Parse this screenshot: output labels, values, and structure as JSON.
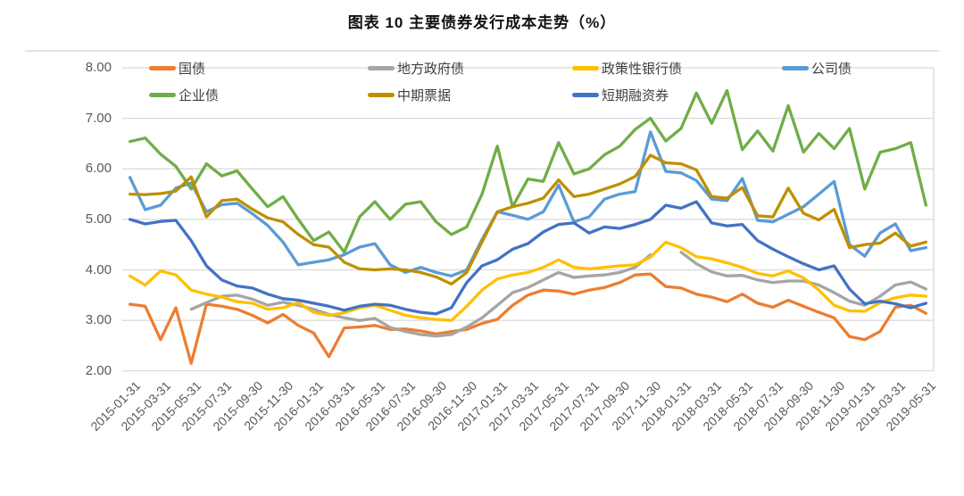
{
  "title": "图表 10 主要债券发行成本走势（%）",
  "chart_data": {
    "type": "line",
    "title": "图表 10 主要债券发行成本走势（%）",
    "x_start": "2015-01",
    "x_end": "2019-05",
    "x_frequency": "monthly",
    "n_points": 53,
    "x_tick_labels": [
      "2015-01-31",
      "2015-03-31",
      "2015-05-31",
      "2015-07-31",
      "2015-09-30",
      "2015-11-30",
      "2016-01-31",
      "2016-03-31",
      "2016-05-31",
      "2016-07-31",
      "2016-09-30",
      "2016-11-30",
      "2017-01-31",
      "2017-03-31",
      "2017-05-31",
      "2017-07-31",
      "2017-09-30",
      "2017-11-30",
      "2018-01-31",
      "2018-03-31",
      "2018-05-31",
      "2018-07-31",
      "2018-09-30",
      "2018-11-30",
      "2019-01-31",
      "2019-03-31",
      "2019-05-31"
    ],
    "y_tick_labels": [
      "8.00",
      "7.00",
      "6.00",
      "5.00",
      "4.00",
      "3.00",
      "2.00"
    ],
    "ylim": [
      2.0,
      8.0
    ],
    "ylabel": "",
    "xlabel": "",
    "grid": true,
    "legend_position": "top",
    "gridline_color": "#d9d9d9",
    "axis_label_color": "#595959",
    "series": [
      {
        "name": "国债",
        "color": "#ED7D31",
        "values": [
          3.32,
          3.28,
          2.62,
          3.25,
          2.15,
          3.32,
          3.28,
          3.22,
          3.1,
          2.95,
          3.12,
          2.9,
          2.75,
          2.28,
          2.85,
          2.87,
          2.9,
          2.82,
          2.83,
          2.79,
          2.73,
          2.78,
          2.82,
          2.94,
          3.02,
          3.3,
          3.5,
          3.6,
          3.58,
          3.52,
          3.6,
          3.65,
          3.75,
          3.9,
          3.92,
          3.67,
          3.64,
          3.52,
          3.46,
          3.37,
          3.52,
          3.34,
          3.26,
          3.4,
          3.28,
          3.16,
          3.05,
          2.68,
          2.62,
          2.78,
          3.26,
          3.3,
          3.14
        ]
      },
      {
        "name": "地方政府债",
        "color": "#A5A5A5",
        "values": [
          null,
          null,
          null,
          null,
          3.22,
          3.35,
          3.48,
          3.5,
          3.42,
          3.3,
          3.36,
          3.3,
          3.22,
          3.12,
          3.05,
          3.0,
          3.04,
          2.86,
          2.78,
          2.72,
          2.69,
          2.72,
          2.87,
          3.05,
          3.3,
          3.55,
          3.65,
          3.8,
          3.95,
          3.85,
          3.88,
          3.9,
          3.95,
          4.05,
          4.3,
          null,
          4.35,
          4.12,
          3.96,
          3.88,
          3.89,
          3.8,
          3.75,
          3.78,
          3.78,
          3.7,
          3.55,
          3.38,
          3.3,
          3.48,
          3.7,
          3.76,
          3.62
        ]
      },
      {
        "name": "政策性银行债",
        "color": "#FFC000",
        "values": [
          3.88,
          3.7,
          3.98,
          3.9,
          3.6,
          3.52,
          3.46,
          3.37,
          3.34,
          3.22,
          3.25,
          3.35,
          3.16,
          3.1,
          3.15,
          3.25,
          3.3,
          3.2,
          3.1,
          3.05,
          3.02,
          3.0,
          3.28,
          3.6,
          3.82,
          3.9,
          3.95,
          4.05,
          4.2,
          4.05,
          4.02,
          4.05,
          4.08,
          4.1,
          4.25,
          4.55,
          4.44,
          4.26,
          4.22,
          4.14,
          4.05,
          3.93,
          3.88,
          3.98,
          3.84,
          3.6,
          3.3,
          3.19,
          3.18,
          3.35,
          3.45,
          3.5,
          3.48
        ]
      },
      {
        "name": "公司债",
        "color": "#5B9BD5",
        "values": [
          5.83,
          5.19,
          5.28,
          5.62,
          5.72,
          5.15,
          5.29,
          5.32,
          5.11,
          4.88,
          4.55,
          4.1,
          4.15,
          4.2,
          4.3,
          4.45,
          4.52,
          4.1,
          3.95,
          4.05,
          3.95,
          3.88,
          4.0,
          4.6,
          5.15,
          5.08,
          5.0,
          5.15,
          5.68,
          4.95,
          5.05,
          5.4,
          5.5,
          5.55,
          6.73,
          5.95,
          5.92,
          5.77,
          5.4,
          5.37,
          5.81,
          4.98,
          4.95,
          5.1,
          5.25,
          5.5,
          5.75,
          4.5,
          4.27,
          4.73,
          4.91,
          4.38,
          4.44
        ]
      },
      {
        "name": "企业债",
        "color": "#70AD47",
        "values": [
          6.54,
          6.61,
          6.29,
          6.05,
          5.6,
          6.1,
          5.86,
          5.96,
          5.6,
          5.25,
          5.45,
          5.0,
          4.58,
          4.75,
          4.35,
          5.05,
          5.35,
          5.0,
          5.3,
          5.35,
          4.95,
          4.7,
          4.85,
          5.5,
          6.45,
          5.25,
          5.8,
          5.75,
          6.52,
          5.9,
          6.0,
          6.28,
          6.45,
          6.78,
          7.0,
          6.55,
          6.8,
          7.5,
          6.9,
          7.55,
          6.38,
          6.75,
          6.35,
          7.25,
          6.33,
          6.7,
          6.4,
          6.8,
          5.6,
          6.33,
          6.4,
          6.52,
          5.28
        ]
      },
      {
        "name": "中期票据",
        "color": "#BF8F00",
        "values": [
          5.5,
          5.49,
          5.51,
          5.56,
          5.84,
          5.05,
          5.37,
          5.4,
          5.2,
          5.03,
          4.95,
          4.7,
          4.5,
          4.45,
          4.15,
          4.02,
          4.0,
          4.02,
          4.0,
          3.95,
          3.86,
          3.72,
          3.95,
          4.55,
          5.15,
          5.25,
          5.32,
          5.42,
          5.78,
          5.45,
          5.5,
          5.6,
          5.7,
          5.85,
          6.27,
          6.12,
          6.1,
          5.98,
          5.45,
          5.42,
          5.63,
          5.07,
          5.05,
          5.62,
          5.12,
          4.99,
          5.2,
          4.44,
          4.5,
          4.53,
          4.73,
          4.47,
          4.55
        ]
      },
      {
        "name": "短期融资券",
        "color": "#4472C4",
        "values": [
          5.0,
          4.91,
          4.96,
          4.98,
          4.58,
          4.08,
          3.8,
          3.68,
          3.64,
          3.52,
          3.43,
          3.4,
          3.34,
          3.28,
          3.2,
          3.28,
          3.32,
          3.3,
          3.22,
          3.16,
          3.13,
          3.25,
          3.75,
          4.08,
          4.2,
          4.41,
          4.52,
          4.75,
          4.9,
          4.93,
          4.73,
          4.85,
          4.82,
          4.9,
          5.0,
          5.28,
          5.22,
          5.35,
          4.93,
          4.87,
          4.9,
          4.58,
          4.41,
          4.26,
          4.12,
          4.0,
          4.08,
          3.62,
          3.33,
          3.38,
          3.33,
          3.25,
          3.34
        ]
      }
    ]
  }
}
